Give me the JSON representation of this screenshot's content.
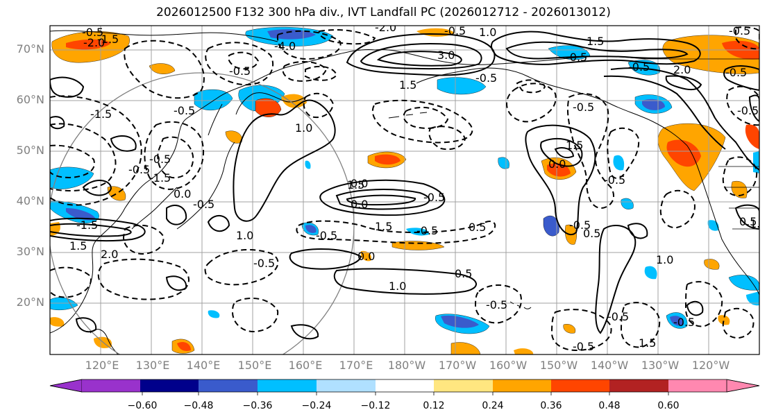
{
  "title": "2026012500 F132 300 hPa div., IVT Landfall PC (2026012712 - 2026013012)",
  "map": {
    "lat_labels": [
      "70°N",
      "60°N",
      "50°N",
      "40°N",
      "30°N",
      "20°N"
    ],
    "lon_labels": [
      "120°E",
      "130°E",
      "140°E",
      "150°E",
      "160°E",
      "170°E",
      "180°W",
      "170°W",
      "160°W",
      "150°W",
      "140°W",
      "130°W",
      "120°W"
    ],
    "contour_labels": [
      "-0.5",
      "-2.0",
      "-1.5",
      "-0.5",
      "-4.0",
      "-2.0",
      "-0.5",
      "1.0",
      "1.5",
      "-0.5",
      "3.0",
      "-0.5",
      "2.0",
      "-0.5",
      "-1.5",
      "1.5",
      "-0.5",
      "-0.5",
      "-0.5",
      "1.0",
      "-0.5",
      "-1.5",
      "0.0",
      "-0.5",
      "1.5",
      "0.0",
      "-0.5",
      "1.5",
      "-0.5",
      "0.0",
      "-0.5",
      "-1.5",
      "1.5",
      "2.0",
      "1.0",
      "1.5",
      "-0.5",
      "0.5",
      "-0.5",
      "0.0",
      "1.0",
      "0.5",
      "-0.5",
      "-0.5",
      "0.5",
      "-0.5",
      "-0.5",
      "-0.5",
      "1.5",
      "1.0",
      "-0.5",
      "0.5",
      "1.0",
      "-0.5",
      "-0.5",
      "0.0"
    ]
  },
  "colorbar": {
    "ticks": [
      "−0.60",
      "−0.48",
      "−0.36",
      "−0.24",
      "−0.12",
      "0.12",
      "0.24",
      "0.36",
      "0.48",
      "0.60"
    ],
    "colors": [
      "#9932cc",
      "#00008b",
      "#3a5bcc",
      "#00bfff",
      "#b0e0ff",
      "#ffffff",
      "#ffe680",
      "#ffa500",
      "#ff4500",
      "#b22222",
      "#ff88b0"
    ]
  },
  "colors": {
    "grid": "#a0a0a0",
    "coast": "#000000",
    "text": "#808080",
    "shading_blue_dark": "#3a5bcc",
    "shading_blue": "#00bfff",
    "shading_orange": "#ffa500",
    "shading_red": "#ff4500"
  }
}
